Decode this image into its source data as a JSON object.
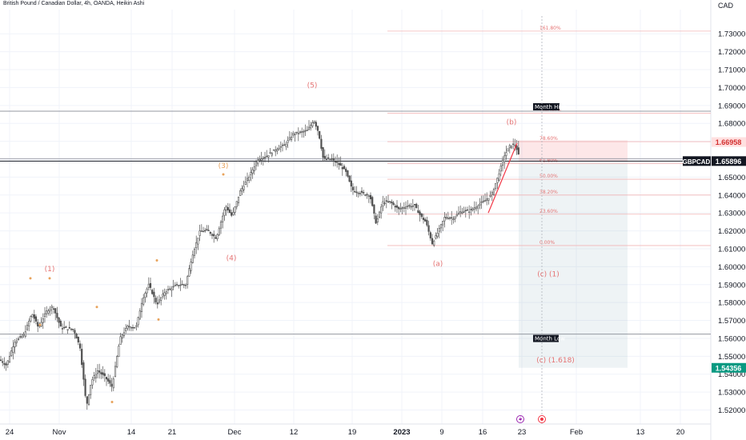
{
  "chart_title": "British Pound / Canadian Dollar, 4h, OANDA, Heikin Ashi",
  "chart_data": {
    "type": "candlestick",
    "symbol": "GBPCAD",
    "currency_label": "CAD",
    "y_ticks": [
      "1.73000",
      "1.72000",
      "1.71000",
      "1.70000",
      "1.69000",
      "1.68000",
      "1.67000",
      "1.66000",
      "1.65000",
      "1.64000",
      "1.63000",
      "1.62000",
      "1.61000",
      "1.60000",
      "1.59000",
      "1.58000",
      "1.57000",
      "1.56000",
      "1.55000",
      "1.54000",
      "1.53000",
      "1.52000"
    ],
    "ylim": [
      1.5122,
      1.7435
    ],
    "x_ticks": [
      "24",
      "Nov",
      "7",
      "14",
      "21",
      "Dec",
      "12",
      "19",
      "2023",
      "9",
      "16",
      "23",
      "Feb",
      "13",
      "20"
    ],
    "x_tick_bold": [
      "2023"
    ],
    "price_path": [
      {
        "x": 0,
        "y": 1.548
      },
      {
        "x": 8,
        "y": 1.545
      },
      {
        "x": 18,
        "y": 1.558
      },
      {
        "x": 30,
        "y": 1.562
      },
      {
        "x": 40,
        "y": 1.574
      },
      {
        "x": 48,
        "y": 1.566
      },
      {
        "x": 58,
        "y": 1.575
      },
      {
        "x": 66,
        "y": 1.578
      },
      {
        "x": 76,
        "y": 1.566
      },
      {
        "x": 92,
        "y": 1.565
      },
      {
        "x": 100,
        "y": 1.555
      },
      {
        "x": 108,
        "y": 1.522
      },
      {
        "x": 114,
        "y": 1.536
      },
      {
        "x": 122,
        "y": 1.542
      },
      {
        "x": 132,
        "y": 1.538
      },
      {
        "x": 140,
        "y": 1.533
      },
      {
        "x": 150,
        "y": 1.56
      },
      {
        "x": 160,
        "y": 1.567
      },
      {
        "x": 170,
        "y": 1.566
      },
      {
        "x": 178,
        "y": 1.582
      },
      {
        "x": 186,
        "y": 1.59
      },
      {
        "x": 196,
        "y": 1.579
      },
      {
        "x": 206,
        "y": 1.586
      },
      {
        "x": 214,
        "y": 1.588
      },
      {
        "x": 222,
        "y": 1.59
      },
      {
        "x": 232,
        "y": 1.59
      },
      {
        "x": 240,
        "y": 1.606
      },
      {
        "x": 250,
        "y": 1.62
      },
      {
        "x": 260,
        "y": 1.62
      },
      {
        "x": 270,
        "y": 1.616
      },
      {
        "x": 282,
        "y": 1.634
      },
      {
        "x": 290,
        "y": 1.628
      },
      {
        "x": 300,
        "y": 1.642
      },
      {
        "x": 312,
        "y": 1.651
      },
      {
        "x": 322,
        "y": 1.66
      },
      {
        "x": 334,
        "y": 1.662
      },
      {
        "x": 346,
        "y": 1.666
      },
      {
        "x": 356,
        "y": 1.668
      },
      {
        "x": 366,
        "y": 1.674
      },
      {
        "x": 376,
        "y": 1.675
      },
      {
        "x": 384,
        "y": 1.676
      },
      {
        "x": 392,
        "y": 1.682
      },
      {
        "x": 398,
        "y": 1.675
      },
      {
        "x": 404,
        "y": 1.66
      },
      {
        "x": 414,
        "y": 1.66
      },
      {
        "x": 424,
        "y": 1.657
      },
      {
        "x": 432,
        "y": 1.653
      },
      {
        "x": 440,
        "y": 1.643
      },
      {
        "x": 452,
        "y": 1.641
      },
      {
        "x": 462,
        "y": 1.64
      },
      {
        "x": 470,
        "y": 1.624
      },
      {
        "x": 478,
        "y": 1.636
      },
      {
        "x": 488,
        "y": 1.636
      },
      {
        "x": 498,
        "y": 1.632
      },
      {
        "x": 508,
        "y": 1.634
      },
      {
        "x": 518,
        "y": 1.634
      },
      {
        "x": 526,
        "y": 1.628
      },
      {
        "x": 532,
        "y": 1.625
      },
      {
        "x": 540,
        "y": 1.613
      },
      {
        "x": 548,
        "y": 1.62
      },
      {
        "x": 556,
        "y": 1.628
      },
      {
        "x": 566,
        "y": 1.627
      },
      {
        "x": 576,
        "y": 1.631
      },
      {
        "x": 586,
        "y": 1.631
      },
      {
        "x": 596,
        "y": 1.634
      },
      {
        "x": 606,
        "y": 1.637
      },
      {
        "x": 614,
        "y": 1.64
      },
      {
        "x": 622,
        "y": 1.65
      },
      {
        "x": 630,
        "y": 1.662
      },
      {
        "x": 638,
        "y": 1.668
      },
      {
        "x": 644,
        "y": 1.668
      },
      {
        "x": 650,
        "y": 1.659
      }
    ],
    "current_price": "1.65896",
    "entry_price": "1.66958",
    "target_price": "1.54356",
    "annotations": {
      "wave_labels": [
        {
          "text": "(5)",
          "x": 390,
          "y": 1.7,
          "color": "#e57373"
        },
        {
          "text": "(3)",
          "x": 279,
          "y": 1.655,
          "color": "#e8a35c"
        },
        {
          "text": "(4)",
          "x": 289,
          "y": 1.6035,
          "color": "#e57373"
        },
        {
          "text": "(1)",
          "x": 62,
          "y": 1.5975,
          "color": "#e57373"
        },
        {
          "text": "(b)",
          "x": 639,
          "y": 1.6795,
          "color": "#e57373"
        },
        {
          "text": "(a)",
          "x": 547,
          "y": 1.6005,
          "color": "#e57373"
        },
        {
          "text": "(c) (1)",
          "x": 685,
          "y": 1.5945,
          "color": "#e57373"
        },
        {
          "text": "(c) (1.618)",
          "x": 694,
          "y": 1.5466,
          "color": "#e57373"
        }
      ],
      "fib_levels": [
        {
          "label": "161.80%",
          "y": 1.7315
        },
        {
          "label": "100.00%",
          "y": 1.6856
        },
        {
          "label": "78.60%",
          "y": 1.6698
        },
        {
          "label": "61.80%",
          "y": 1.6576
        },
        {
          "label": "50.00%",
          "y": 1.6488
        },
        {
          "label": "38.20%",
          "y": 1.64
        },
        {
          "label": "23.60%",
          "y": 1.6293
        },
        {
          "label": "0.00%",
          "y": 1.6118
        }
      ],
      "month_high": {
        "label": "Month High",
        "y": 1.6868
      },
      "month_low": {
        "label": "Month Low",
        "y": 1.5624
      }
    }
  },
  "colors": {
    "background": "#ffffff",
    "grid": "#f0f3fa",
    "candle": "#505050",
    "fib": "#f3b7b7",
    "fib_text": "#e57373",
    "stop_zone": "rgba(242,54,69,0.12)",
    "target_zone": "rgba(8,153,129,0.10)",
    "target_zone_grey": "rgba(120,160,180,0.13)",
    "symbol_tag": "#131722",
    "entry_tag": "#ffe0e0",
    "entry_text": "#d32f2f",
    "target_tag": "#089981"
  }
}
